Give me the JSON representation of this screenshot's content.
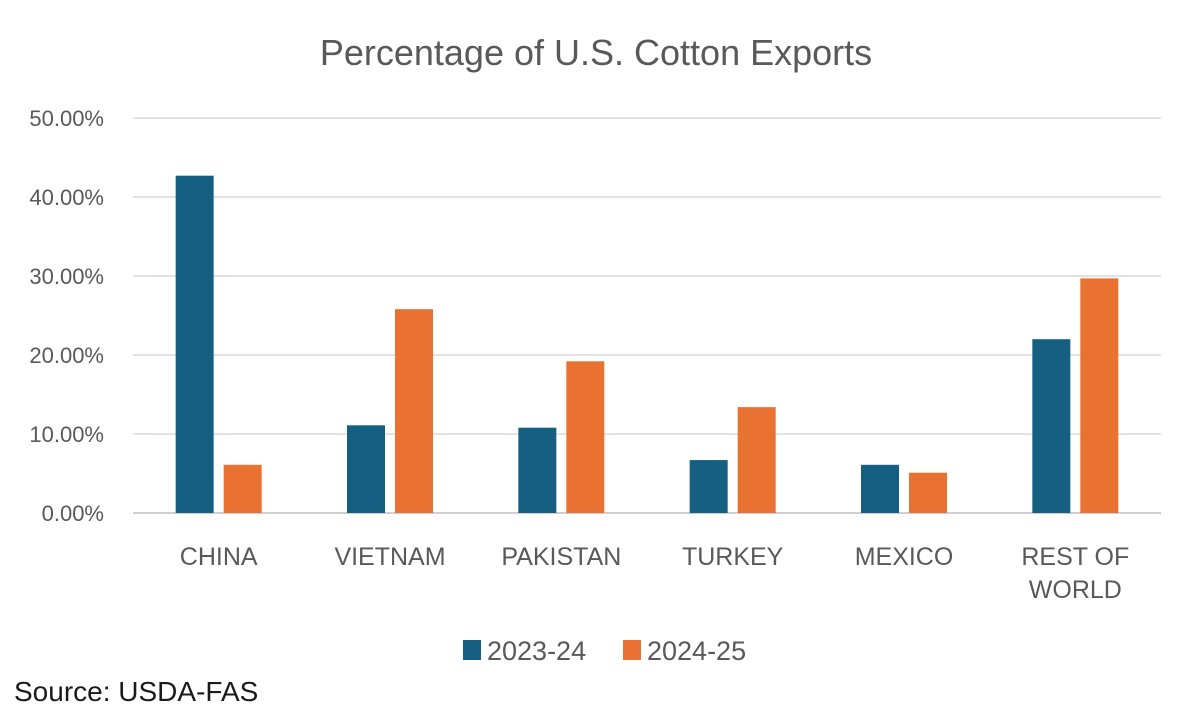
{
  "chart_data": {
    "type": "bar",
    "title": "Percentage of U.S. Cotton Exports",
    "categories": [
      "CHINA",
      "VIETNAM",
      "PAKISTAN",
      "TURKEY",
      "MEXICO",
      "REST OF WORLD"
    ],
    "category_lines": [
      [
        "CHINA"
      ],
      [
        "VIETNAM"
      ],
      [
        "PAKISTAN"
      ],
      [
        "TURKEY"
      ],
      [
        "MEXICO"
      ],
      [
        "REST OF",
        "WORLD"
      ]
    ],
    "series": [
      {
        "name": "2023-24",
        "color": "#156082",
        "values": [
          42.7,
          11.1,
          10.8,
          6.7,
          6.1,
          22.0
        ]
      },
      {
        "name": "2024-25",
        "color": "#E97132",
        "values": [
          6.1,
          25.8,
          19.2,
          13.4,
          5.1,
          29.7
        ]
      }
    ],
    "ylim": [
      0,
      50
    ],
    "yticks": [
      0,
      10,
      20,
      30,
      40,
      50
    ],
    "ytick_labels": [
      "0.00%",
      "10.00%",
      "20.00%",
      "30.00%",
      "40.00%",
      "50.00%"
    ],
    "grid": true,
    "legend_position": "bottom",
    "xlabel": "",
    "ylabel": ""
  },
  "source": "Source: USDA-FAS"
}
